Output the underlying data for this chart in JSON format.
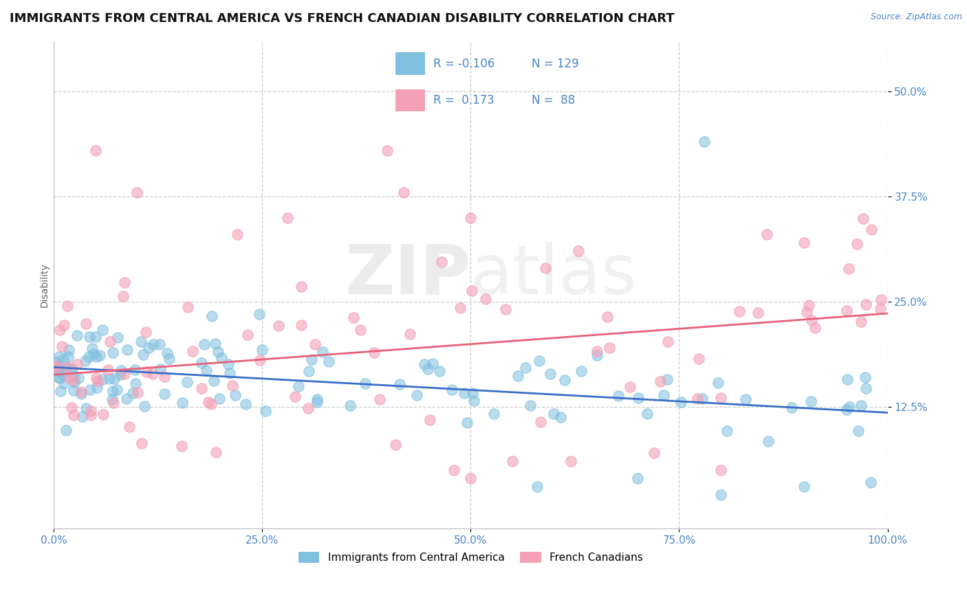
{
  "title": "IMMIGRANTS FROM CENTRAL AMERICA VS FRENCH CANADIAN DISABILITY CORRELATION CHART",
  "source_text": "Source: ZipAtlas.com",
  "ylabel": "Disability",
  "watermark": "ZIPatlas",
  "xlim": [
    0.0,
    1.0
  ],
  "ylim": [
    -0.02,
    0.56
  ],
  "xticks": [
    0.0,
    0.25,
    0.5,
    0.75,
    1.0
  ],
  "xticklabels": [
    "0.0%",
    "25.0%",
    "50.0%",
    "75.0%",
    "100.0%"
  ],
  "ytick_positions": [
    0.125,
    0.25,
    0.375,
    0.5
  ],
  "ytick_labels": [
    "12.5%",
    "25.0%",
    "37.5%",
    "50.0%"
  ],
  "legend_R1": "-0.106",
  "legend_N1": "129",
  "legend_R2": "0.173",
  "legend_N2": "88",
  "color_blue": "#7fbfdf",
  "color_pink": "#f4a0b5",
  "color_blue_text": "#4a86c8",
  "trend_blue": "#3a6fc8",
  "trend_pink": "#e8607a",
  "background_color": "#ffffff",
  "grid_color": "#cccccc",
  "title_fontsize": 13,
  "axis_label_fontsize": 10,
  "tick_label_fontsize": 11,
  "legend_fontsize": 12,
  "trend_blue_start_y": 0.172,
  "trend_blue_end_y": 0.118,
  "trend_pink_start_y": 0.163,
  "trend_pink_end_y": 0.236
}
